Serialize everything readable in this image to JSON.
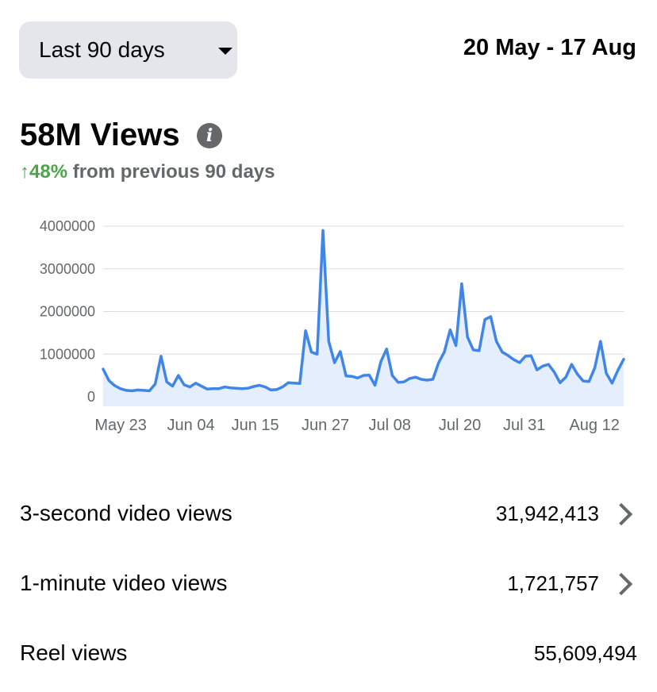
{
  "header": {
    "range_label": "Last 90 days",
    "date_range": "20 May - 17 Aug"
  },
  "summary": {
    "total": "58M Views",
    "change_pct": "↑48%",
    "change_text": " from previous 90 days"
  },
  "chart_data": {
    "type": "area",
    "yticks": [
      "4000000",
      "3000000",
      "2000000",
      "1000000",
      "0"
    ],
    "xticks": [
      "May 23",
      "Jun 04",
      "Jun 15",
      "Jun 27",
      "Jul 08",
      "Jul 20",
      "Jul 31",
      "Aug 12"
    ],
    "ylim": [
      0,
      4000000
    ],
    "grid": true,
    "colors": {
      "line": "#3f86e8",
      "fill": "#e5eefc",
      "grid": "#dadde1",
      "tick": "#65676b"
    },
    "x_start": "2023-05-20",
    "x_end": "2023-08-17",
    "values": [
      650000,
      380000,
      260000,
      190000,
      150000,
      140000,
      160000,
      150000,
      140000,
      300000,
      950000,
      350000,
      250000,
      500000,
      280000,
      230000,
      320000,
      250000,
      180000,
      190000,
      190000,
      230000,
      210000,
      200000,
      190000,
      200000,
      240000,
      270000,
      230000,
      160000,
      170000,
      230000,
      330000,
      320000,
      310000,
      1550000,
      1050000,
      1000000,
      3900000,
      1300000,
      800000,
      1060000,
      490000,
      480000,
      440000,
      500000,
      510000,
      270000,
      820000,
      1120000,
      500000,
      340000,
      350000,
      430000,
      460000,
      410000,
      390000,
      410000,
      800000,
      1050000,
      1570000,
      1200000,
      2650000,
      1400000,
      1100000,
      1080000,
      1810000,
      1880000,
      1300000,
      1050000,
      970000,
      870000,
      800000,
      950000,
      960000,
      630000,
      720000,
      760000,
      580000,
      330000,
      460000,
      760000,
      530000,
      370000,
      360000,
      680000,
      1300000,
      550000,
      320000,
      620000,
      880000
    ]
  },
  "metrics": [
    {
      "label": "3-second video views",
      "value": "31,942,413"
    },
    {
      "label": "1-minute video views",
      "value": "1,721,757"
    },
    {
      "label": "Reel views",
      "value": "55,609,494"
    }
  ]
}
